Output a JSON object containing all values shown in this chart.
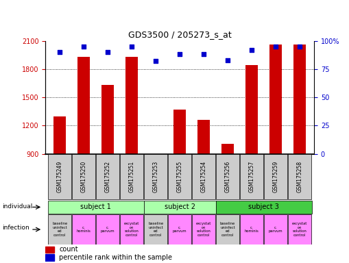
{
  "title": "GDS3500 / 205273_s_at",
  "samples": [
    "GSM175249",
    "GSM175250",
    "GSM175252",
    "GSM175251",
    "GSM175253",
    "GSM175255",
    "GSM175254",
    "GSM175256",
    "GSM175257",
    "GSM175259",
    "GSM175258"
  ],
  "counts": [
    1295,
    1930,
    1630,
    1930,
    870,
    1370,
    1260,
    1010,
    1840,
    2060,
    2060
  ],
  "percentiles": [
    90,
    95,
    90,
    95,
    82,
    88,
    88,
    83,
    92,
    95,
    95
  ],
  "ylim_left": [
    900,
    2100
  ],
  "ylim_right": [
    0,
    100
  ],
  "yticks_left": [
    900,
    1200,
    1500,
    1800,
    2100
  ],
  "yticks_right": [
    0,
    25,
    50,
    75,
    100
  ],
  "bar_color": "#cc0000",
  "dot_color": "#0000cc",
  "subject_groups": [
    {
      "label": "subject 1",
      "start": 0,
      "end": 3,
      "color": "#aaffaa"
    },
    {
      "label": "subject 2",
      "start": 4,
      "end": 6,
      "color": "#aaffaa"
    },
    {
      "label": "subject 3",
      "start": 7,
      "end": 10,
      "color": "#44cc44"
    }
  ],
  "infection_colors": [
    "#cccccc",
    "#ff88ff",
    "#ff88ff",
    "#ff88ff",
    "#cccccc",
    "#ff88ff",
    "#ff88ff",
    "#cccccc",
    "#ff88ff",
    "#ff88ff",
    "#ff88ff"
  ],
  "left_label_color": "#cc0000",
  "right_label_color": "#0000cc"
}
